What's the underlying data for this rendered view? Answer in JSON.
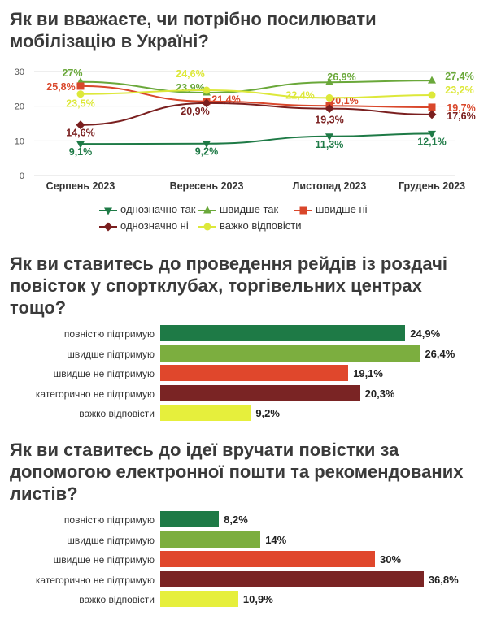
{
  "titles": {
    "q1": "Як ви вважаєте, чи потрібно посилювати мобілізацію в Україні?",
    "q2": "Як ви ставитесь до проведення рейдів із роздачі повісток у спортклубах, торгівельних центрах тощо?",
    "q3": "Як ви ставитесь до ідеї вручати повістки за допомогою електронної пошти та рекомендованих листів?"
  },
  "chart_data": [
    {
      "type": "line",
      "categories": [
        "Серпень 2023",
        "Вересень 2023",
        "Листопад 2023",
        "Грудень 2023"
      ],
      "ylim": [
        0,
        30
      ],
      "yticks": [
        "0",
        "10",
        "20",
        "30"
      ],
      "grid": true,
      "legend_position": "bottom",
      "series": [
        {
          "name": "однозначно так",
          "color": "#1e7a46",
          "marker": "arrow-down",
          "values": [
            9.1,
            9.2,
            11.3,
            12.1
          ],
          "labels": [
            "9,1%",
            "9,2%",
            "11,3%",
            "12,1%"
          ]
        },
        {
          "name": "швидше так",
          "color": "#6aa83a",
          "marker": "arrow-up",
          "values": [
            27,
            23.9,
            26.9,
            27.4
          ],
          "labels": [
            "27%",
            "23,9%",
            "26,9%",
            "27,4%"
          ]
        },
        {
          "name": "швидше ні",
          "color": "#d9472b",
          "marker": "square",
          "values": [
            25.8,
            21.4,
            20.1,
            19.7
          ],
          "labels": [
            "25,8%",
            "21,4%",
            "20,1%",
            "19,7%"
          ]
        },
        {
          "name": "однозначно ні",
          "color": "#7a1f1f",
          "marker": "diamond",
          "values": [
            14.6,
            20.9,
            19.3,
            17.6
          ],
          "labels": [
            "14,6%",
            "20,9%",
            "19,3%",
            "17,6%"
          ]
        },
        {
          "name": "важко відповісти",
          "color": "#dde83a",
          "marker": "circle",
          "values": [
            23.5,
            24.6,
            22.4,
            23.2
          ],
          "labels": [
            "23,5%",
            "24,6%",
            "22,4%",
            "23,2%"
          ]
        }
      ]
    },
    {
      "type": "bar",
      "orientation": "horizontal",
      "categories": [
        "повністю підтримую",
        "швидше підтримую",
        "швидше не підтримую",
        "категорично не підтримую",
        "важко відповісти"
      ],
      "values": [
        24.9,
        26.4,
        19.1,
        20.3,
        9.2
      ],
      "labels": [
        "24,9%",
        "26,4%",
        "19,1%",
        "20,3%",
        "9,2%"
      ],
      "colors": [
        "#1e7a46",
        "#7cae3f",
        "#e0472c",
        "#7a2424",
        "#e6ef3c"
      ]
    },
    {
      "type": "bar",
      "orientation": "horizontal",
      "categories": [
        "повністю підтримую",
        "швидше підтримую",
        "швидше не підтримую",
        "категорично не підтримую",
        "важко відповісти"
      ],
      "values": [
        8.2,
        14,
        30,
        36.8,
        10.9
      ],
      "labels": [
        "8,2%",
        "14%",
        "30%",
        "36,8%",
        "10,9%"
      ],
      "colors": [
        "#1e7a46",
        "#7cae3f",
        "#e0472c",
        "#7a2424",
        "#e6ef3c"
      ]
    }
  ]
}
